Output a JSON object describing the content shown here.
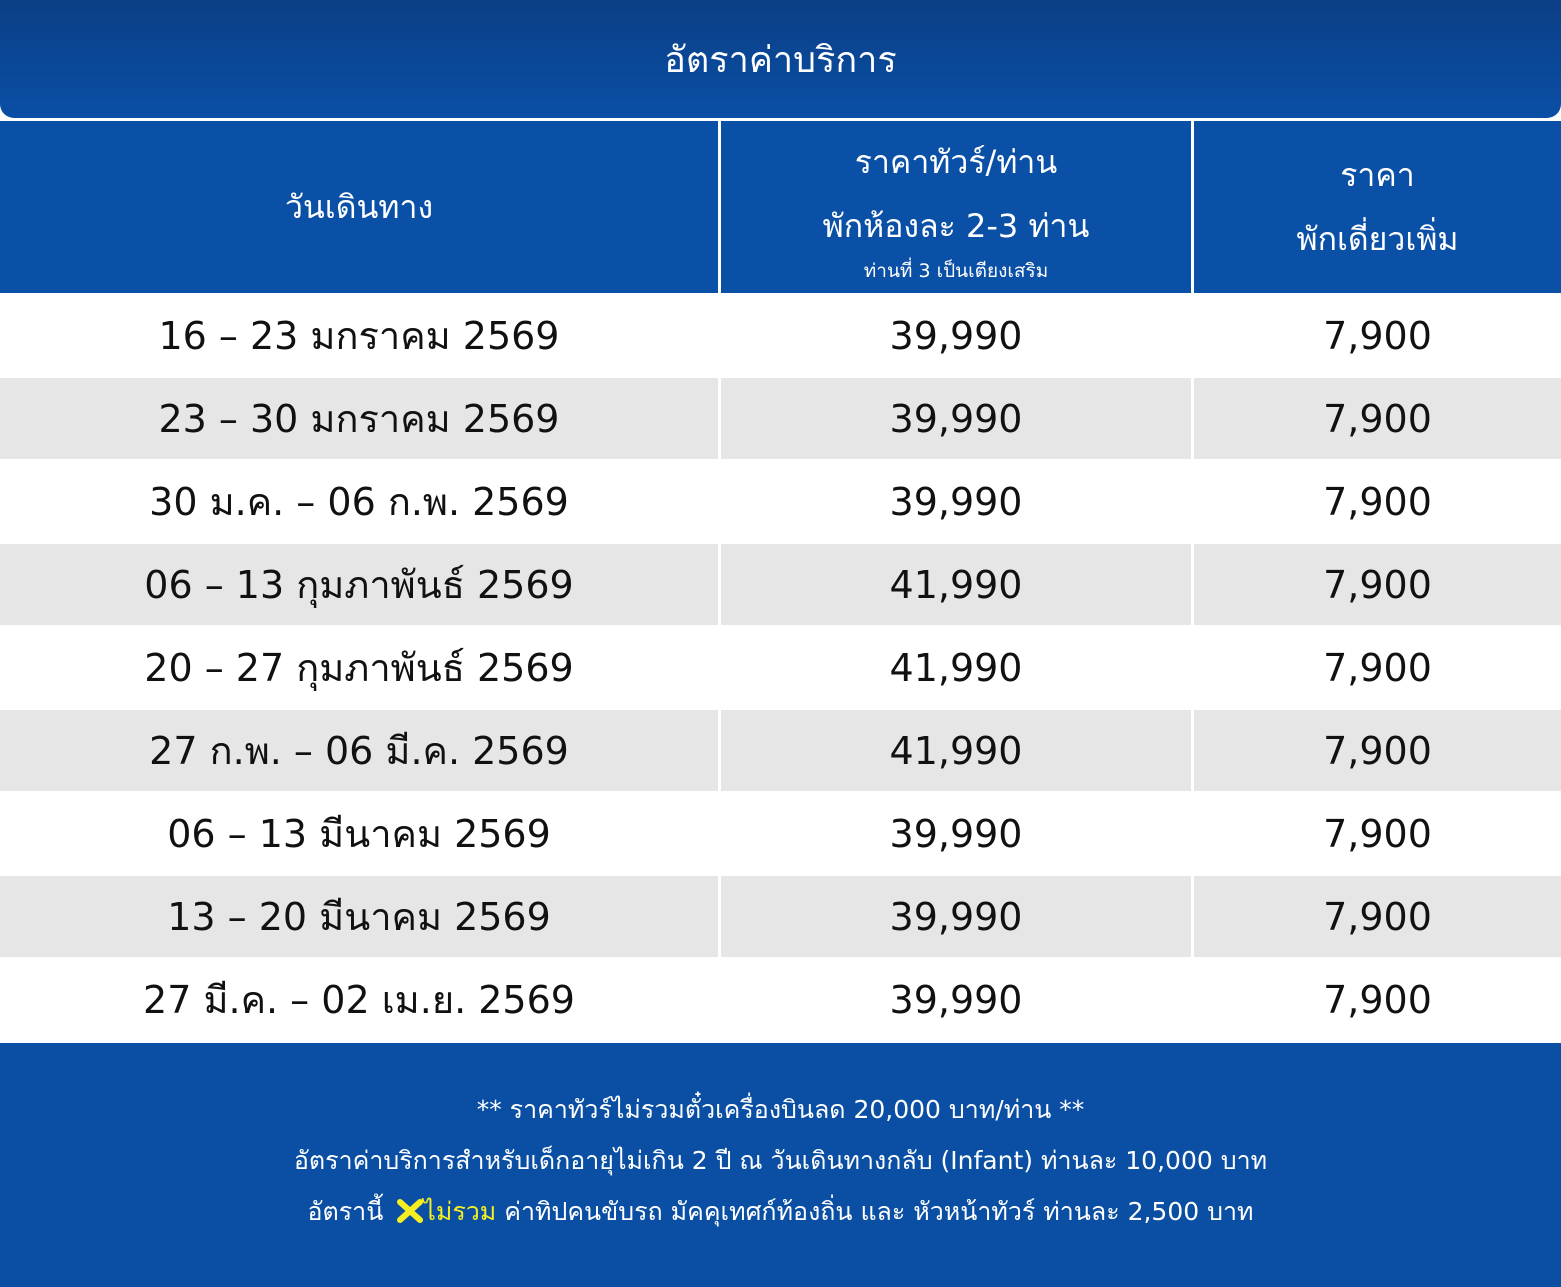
{
  "header": {
    "title": "อัตราค่าบริการ"
  },
  "table": {
    "columns": [
      {
        "lines": [
          "วันเดินทาง"
        ]
      },
      {
        "lines": [
          "ราคาทัวร์/ท่าน",
          "พักห้องละ 2-3 ท่าน"
        ],
        "note": "ท่านที่ 3 เป็นเตียงเสริม"
      },
      {
        "lines": [
          "ราคา",
          "พักเดี่ยวเพิ่ม"
        ]
      }
    ],
    "rows": [
      [
        "16 – 23 มกราคม 2569",
        "39,990",
        "7,900"
      ],
      [
        "23 – 30 มกราคม 2569",
        "39,990",
        "7,900"
      ],
      [
        "30 ม.ค. – 06 ก.พ. 2569",
        "39,990",
        "7,900"
      ],
      [
        "06 – 13 กุมภาพันธ์ 2569",
        "41,990",
        "7,900"
      ],
      [
        "20 – 27 กุมภาพันธ์ 2569",
        "41,990",
        "7,900"
      ],
      [
        "27 ก.พ. – 06 มี.ค. 2569",
        "41,990",
        "7,900"
      ],
      [
        "06 – 13 มีนาคม 2569",
        "39,990",
        "7,900"
      ],
      [
        "13 – 20 มีนาคม 2569",
        "39,990",
        "7,900"
      ],
      [
        "27 มี.ค. – 02 เม.ย. 2569",
        "39,990",
        "7,900"
      ]
    ]
  },
  "footer": {
    "lines": [
      "** ราคาทัวร์ไม่รวมตั๋วเครื่องบินลด 20,000 บาท/ท่าน **",
      "อัตราค่าบริการสำหรับเด็กอายุไม่เกิน 2 ปี ณ วันเดินทางกลับ (Infant) ท่านละ 10,000 บาท"
    ],
    "note": {
      "lead": "อัตรานี้",
      "highlight": "ไม่รวม",
      "rest": "ค่าทิปคนขับรถ มัคคุเทศก์ท้องถิ่น และ หัวหน้าทัวร์ ท่านละ 2,500 บาท"
    }
  }
}
